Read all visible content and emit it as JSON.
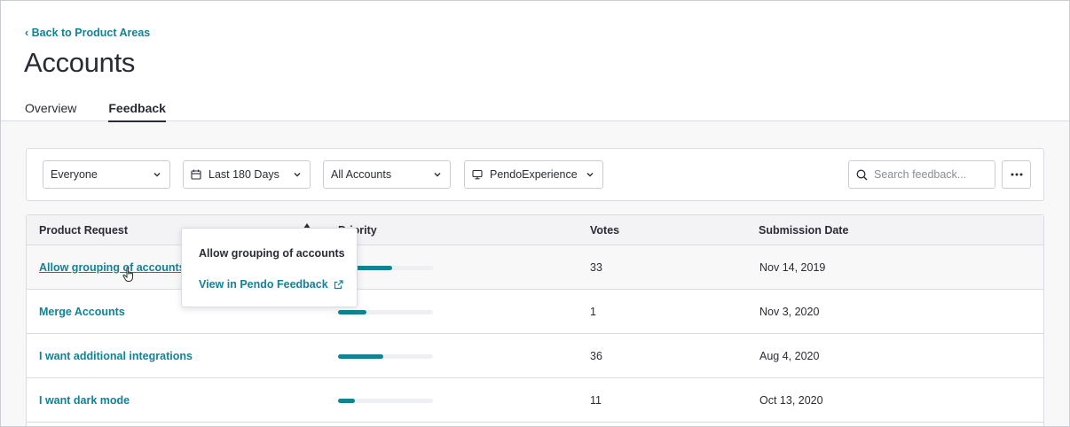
{
  "header": {
    "back_link": "‹ Back to Product Areas",
    "title": "Accounts",
    "tabs": [
      {
        "label": "Overview",
        "active": false
      },
      {
        "label": "Feedback",
        "active": true
      }
    ]
  },
  "filters": {
    "audience": "Everyone",
    "date_range": "Last 180 Days",
    "accounts": "All Accounts",
    "app": "PendoExperience",
    "search_placeholder": "Search feedback..."
  },
  "table": {
    "columns": [
      "Product Request",
      "Priority",
      "Votes",
      "Submission Date"
    ],
    "rows": [
      {
        "request": "Allow grouping of accounts",
        "priority": 0.57,
        "votes": "33",
        "date": "Nov 14, 2019"
      },
      {
        "request": "Merge Accounts",
        "priority": 0.3,
        "votes": "1",
        "date": "Nov 3, 2020"
      },
      {
        "request": "I want additional integrations",
        "priority": 0.48,
        "votes": "36",
        "date": "Aug 4, 2020"
      },
      {
        "request": "I want dark mode",
        "priority": 0.18,
        "votes": "11",
        "date": "Oct 13, 2020"
      }
    ]
  },
  "tooltip": {
    "title": "Allow grouping of accounts",
    "link": "View in Pendo Feedback"
  },
  "colors": {
    "accent": "#128297",
    "text": "#2a2c35",
    "border": "#dadce5"
  }
}
